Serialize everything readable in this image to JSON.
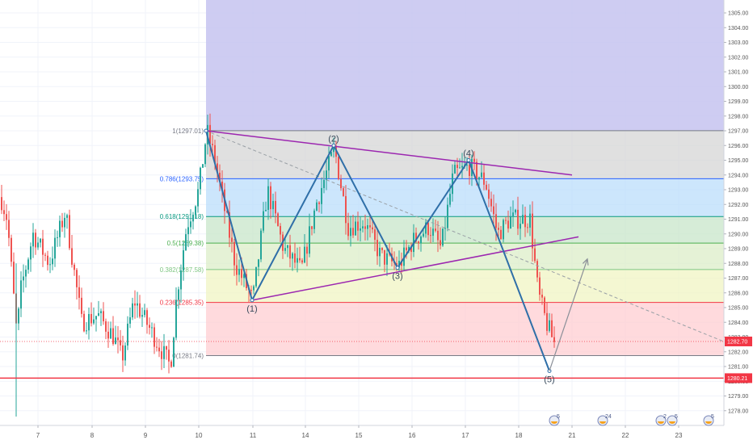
{
  "chart_data": {
    "type": "candlestick",
    "x_ticks": [
      "7",
      "8",
      "9",
      "10",
      "11",
      "14",
      "15",
      "16",
      "17",
      "18",
      "21",
      "22",
      "23"
    ],
    "y_ticks": [
      "1305.00",
      "1304.00",
      "1303.00",
      "1302.00",
      "1301.00",
      "1300.00",
      "1299.00",
      "1298.00",
      "1297.00",
      "1296.00",
      "1295.00",
      "1294.00",
      "1293.00",
      "1292.00",
      "1291.00",
      "1290.00",
      "1289.00",
      "1288.00",
      "1287.00",
      "1286.00",
      "1285.00",
      "1284.00",
      "1283.00",
      "1282.00",
      "1281.00",
      "1280.00",
      "1279.00",
      "1278.00"
    ],
    "ylim": [
      1277.5,
      1305.8
    ],
    "fib_levels": [
      {
        "ratio": 1,
        "price": 1297.01,
        "label": "1(1297.01)",
        "color": "#787b86",
        "fill": "#d6d6d6"
      },
      {
        "ratio": 0.786,
        "price": 1293.75,
        "label": "0.786(1293.75)",
        "color": "#2962ff",
        "fill": "#bbdefb"
      },
      {
        "ratio": 0.618,
        "price": 1291.18,
        "label": "0.618(1291.18)",
        "color": "#089981",
        "fill": "#c8e6c9"
      },
      {
        "ratio": 0.5,
        "price": 1289.38,
        "label": "0.5(1289.38)",
        "color": "#4caf50",
        "fill": "#dcedc8"
      },
      {
        "ratio": 0.382,
        "price": 1287.58,
        "label": "0.382(1287.58)",
        "color": "#81c784",
        "fill": "#f0f4c3"
      },
      {
        "ratio": 0.236,
        "price": 1285.35,
        "label": "0.236(1285.35)",
        "color": "#f23645",
        "fill": "#ffcdd2"
      },
      {
        "ratio": 0,
        "price": 1281.74,
        "label": "0(1281.74)",
        "color": "#787b86",
        "fill": "#ffffff"
      }
    ],
    "upper_zone": {
      "from": 1297.01,
      "to": 1305.8,
      "color": "#c5c3f0"
    },
    "waves": [
      {
        "label": "(1)",
        "x": 312,
        "price": 1285.5
      },
      {
        "label": "(2)",
        "x": 413,
        "price": 1296.0
      },
      {
        "label": "(3)",
        "x": 492,
        "price": 1287.7
      },
      {
        "label": "(4)",
        "x": 580,
        "price": 1295.0
      },
      {
        "label": "(5)",
        "x": 680,
        "price": 1280.7
      }
    ],
    "wave_start": {
      "x": 255,
      "price": 1297.0
    },
    "projection": {
      "from_x": 680,
      "from_price": 1280.7,
      "to_x": 727,
      "to_price": 1288.3
    },
    "trendline_upper": {
      "x1": 255,
      "p1": 1297.0,
      "x2": 708,
      "p2": 1294.0
    },
    "trendline_lower": {
      "x1": 312,
      "p1": 1285.5,
      "x2": 716,
      "p2": 1289.8
    },
    "dashed_line": {
      "x1": 255,
      "p1": 1297.0,
      "x2": 900,
      "p2": 1282.6
    },
    "support_line": {
      "price": 1280.21
    },
    "current_price": {
      "price": 1282.7,
      "label": "1282.70",
      "color": "#f23645"
    },
    "support_price": {
      "label": "1280.21",
      "color": "#f23645"
    },
    "price_last": 1282.7,
    "events": [
      {
        "x": 686,
        "label": "5"
      },
      {
        "x": 746,
        "label": "24"
      },
      {
        "x": 818,
        "label": "2"
      },
      {
        "x": 832,
        "label": "5"
      },
      {
        "x": 877,
        "label": "5"
      }
    ]
  }
}
